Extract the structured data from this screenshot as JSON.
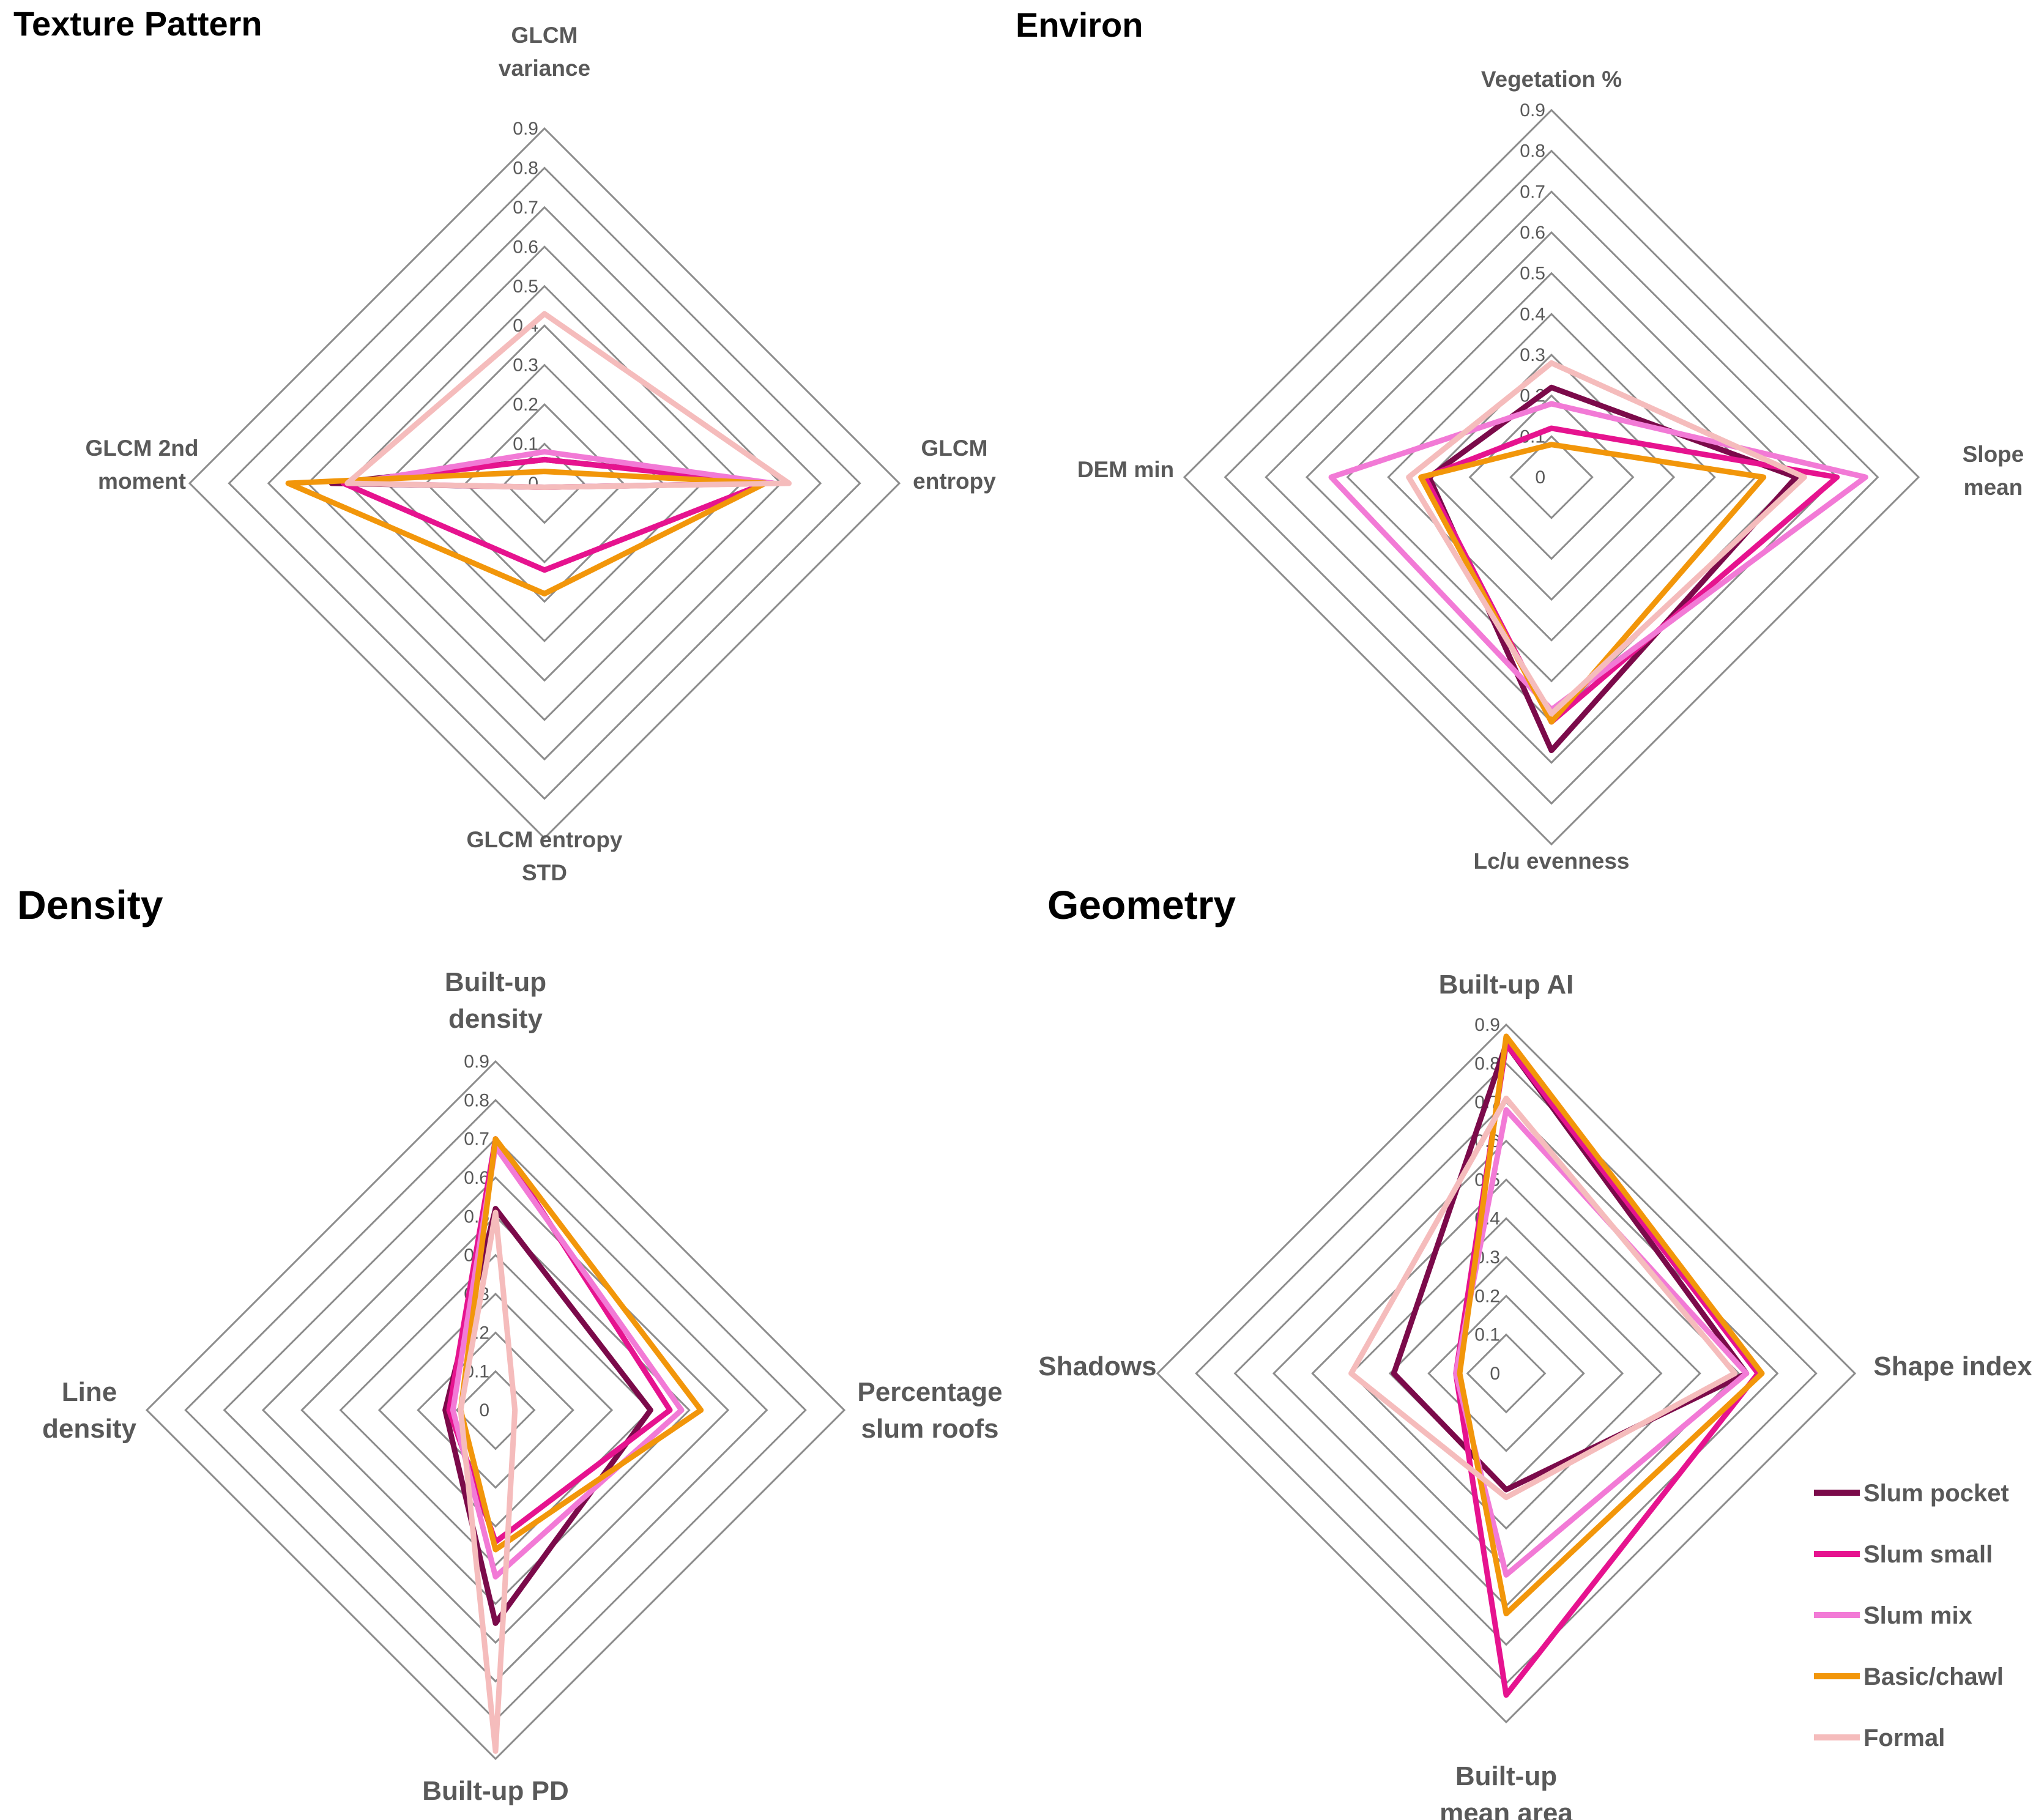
{
  "series_colors": {
    "Slum pocket": "#7b0a4a",
    "Slum small": "#e6138f",
    "Slum mix": "#f27ad6",
    "Basic/chawl": "#f2960a",
    "Formal": "#f5bcbc"
  },
  "legend": {
    "items": [
      "Slum pocket",
      "Slum small",
      "Slum mix",
      "Basic/chawl",
      "Formal"
    ]
  },
  "chart_data": [
    {
      "type": "radar",
      "title": "Texture Pattern",
      "axes": [
        {
          "name": "GLCM variance",
          "lines": [
            "GLCM",
            "variance"
          ]
        },
        {
          "name": "GLCM entropy",
          "lines": [
            "GLCM",
            "entropy"
          ]
        },
        {
          "name": "GLCM entropy STD",
          "lines": [
            "GLCM entropy",
            "STD"
          ]
        },
        {
          "name": "GLCM 2nd moment",
          "lines": [
            "GLCM 2nd",
            "moment"
          ]
        }
      ],
      "range": [
        0,
        0.9
      ],
      "ticks": [
        "0",
        "0.1",
        "0.2",
        "0.3",
        "0.4",
        "0.5",
        "0.6",
        "0.7",
        "0.8",
        "0.9"
      ],
      "series": [
        {
          "name": "Slum pocket",
          "values": [
            0.06,
            0.58,
            0.01,
            0.54
          ]
        },
        {
          "name": "Slum small",
          "values": [
            0.06,
            0.56,
            0.22,
            0.51
          ]
        },
        {
          "name": "Slum mix",
          "values": [
            0.08,
            0.58,
            0.01,
            0.49
          ]
        },
        {
          "name": "Basic/chawl",
          "values": [
            0.03,
            0.56,
            0.28,
            0.65
          ]
        },
        {
          "name": "Formal",
          "values": [
            0.43,
            0.62,
            0.01,
            0.5
          ]
        }
      ]
    },
    {
      "type": "radar",
      "title": "Environ",
      "axes": [
        {
          "name": "Vegetation %",
          "lines": [
            "Vegetation %"
          ]
        },
        {
          "name": "Slope mean",
          "lines": [
            "Slope",
            "mean"
          ]
        },
        {
          "name": "Lc/u evenness",
          "lines": [
            "Lc/u evenness"
          ]
        },
        {
          "name": "DEM min",
          "lines": [
            "DEM min"
          ]
        }
      ],
      "range": [
        0,
        0.9
      ],
      "ticks": [
        "0",
        "0.1",
        "0.2",
        "0.3",
        "0.4",
        "0.5",
        "0.6",
        "0.7",
        "0.8",
        "0.9"
      ],
      "series": [
        {
          "name": "Slum pocket",
          "values": [
            0.22,
            0.6,
            0.67,
            0.3
          ]
        },
        {
          "name": "Slum small",
          "values": [
            0.12,
            0.7,
            0.6,
            0.31
          ]
        },
        {
          "name": "Slum mix",
          "values": [
            0.18,
            0.77,
            0.57,
            0.54
          ]
        },
        {
          "name": "Basic/chawl",
          "values": [
            0.08,
            0.52,
            0.6,
            0.32
          ]
        },
        {
          "name": "Formal",
          "values": [
            0.28,
            0.62,
            0.58,
            0.35
          ]
        }
      ]
    },
    {
      "type": "radar",
      "title": "Density",
      "axes": [
        {
          "name": "Built-up density",
          "lines": [
            "Built-up",
            "density"
          ]
        },
        {
          "name": "Percentage slum roofs",
          "lines": [
            "Percentage",
            "slum roofs"
          ]
        },
        {
          "name": "Built-up PD",
          "lines": [
            "Built-up PD"
          ]
        },
        {
          "name": "Line density",
          "lines": [
            "Line",
            "density"
          ]
        }
      ],
      "range": [
        0,
        0.9
      ],
      "ticks": [
        "0",
        "0.1",
        "0.2",
        "0.3",
        "0.4",
        "0.5",
        "0.6",
        "0.7",
        "0.8",
        "0.9"
      ],
      "series": [
        {
          "name": "Slum pocket",
          "values": [
            0.52,
            0.4,
            0.55,
            0.13
          ]
        },
        {
          "name": "Slum small",
          "values": [
            0.7,
            0.45,
            0.34,
            0.12
          ]
        },
        {
          "name": "Slum mix",
          "values": [
            0.68,
            0.48,
            0.43,
            0.11
          ]
        },
        {
          "name": "Basic/chawl",
          "values": [
            0.7,
            0.53,
            0.36,
            0.09
          ]
        },
        {
          "name": "Formal",
          "values": [
            0.51,
            0.05,
            0.88,
            0.09
          ]
        }
      ]
    },
    {
      "type": "radar",
      "title": "Geometry",
      "axes": [
        {
          "name": "Built-up AI",
          "lines": [
            "Built-up AI"
          ]
        },
        {
          "name": "Shape index",
          "lines": [
            "Shape index"
          ]
        },
        {
          "name": "Built-up mean area",
          "lines": [
            "Built-up",
            "mean area"
          ]
        },
        {
          "name": "Shadows",
          "lines": [
            "Shadows"
          ]
        }
      ],
      "range": [
        0,
        0.9
      ],
      "ticks": [
        "0",
        "0.1",
        "0.2",
        "0.3",
        "0.4",
        "0.5",
        "0.6",
        "0.7",
        "0.8",
        "0.9"
      ],
      "series": [
        {
          "name": "Slum pocket",
          "values": [
            0.85,
            0.62,
            0.3,
            0.29
          ]
        },
        {
          "name": "Slum small",
          "values": [
            0.85,
            0.65,
            0.83,
            0.13
          ]
        },
        {
          "name": "Slum mix",
          "values": [
            0.68,
            0.62,
            0.52,
            0.13
          ]
        },
        {
          "name": "Basic/chawl",
          "values": [
            0.87,
            0.66,
            0.62,
            0.12
          ]
        },
        {
          "name": "Formal",
          "values": [
            0.71,
            0.59,
            0.32,
            0.4
          ]
        }
      ]
    }
  ]
}
